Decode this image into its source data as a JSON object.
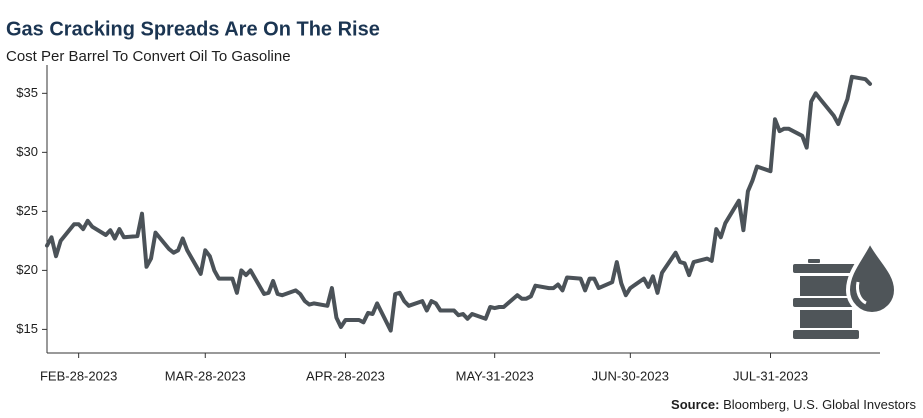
{
  "chart_data": {
    "type": "line",
    "title": "Gas Cracking Spreads Are On The Rise",
    "subtitle": "Cost Per Barrel To Convert Oil To Gasoline",
    "source_label": "Source:",
    "source": "Bloomberg, U.S. Global Investors",
    "color": "#4b5258",
    "x": [
      "2023-02-21",
      "2023-02-22",
      "2023-02-23",
      "2023-02-24",
      "2023-02-27",
      "2023-02-28",
      "2023-03-01",
      "2023-03-02",
      "2023-03-03",
      "2023-03-06",
      "2023-03-07",
      "2023-03-08",
      "2023-03-09",
      "2023-03-10",
      "2023-03-13",
      "2023-03-14",
      "2023-03-15",
      "2023-03-16",
      "2023-03-17",
      "2023-03-20",
      "2023-03-21",
      "2023-03-22",
      "2023-03-23",
      "2023-03-24",
      "2023-03-27",
      "2023-03-28",
      "2023-03-29",
      "2023-03-30",
      "2023-03-31",
      "2023-04-03",
      "2023-04-04",
      "2023-04-05",
      "2023-04-06",
      "2023-04-07",
      "2023-04-10",
      "2023-04-11",
      "2023-04-12",
      "2023-04-13",
      "2023-04-14",
      "2023-04-17",
      "2023-04-18",
      "2023-04-19",
      "2023-04-20",
      "2023-04-21",
      "2023-04-24",
      "2023-04-25",
      "2023-04-26",
      "2023-04-27",
      "2023-04-28",
      "2023-05-01",
      "2023-05-02",
      "2023-05-03",
      "2023-05-04",
      "2023-05-05",
      "2023-05-08",
      "2023-05-09",
      "2023-05-10",
      "2023-05-11",
      "2023-05-12",
      "2023-05-15",
      "2023-05-16",
      "2023-05-17",
      "2023-05-18",
      "2023-05-19",
      "2023-05-22",
      "2023-05-23",
      "2023-05-24",
      "2023-05-25",
      "2023-05-26",
      "2023-05-29",
      "2023-05-30",
      "2023-05-31",
      "2023-06-01",
      "2023-06-02",
      "2023-06-05",
      "2023-06-06",
      "2023-06-07",
      "2023-06-08",
      "2023-06-09",
      "2023-06-12",
      "2023-06-13",
      "2023-06-14",
      "2023-06-15",
      "2023-06-16",
      "2023-06-19",
      "2023-06-20",
      "2023-06-21",
      "2023-06-22",
      "2023-06-23",
      "2023-06-26",
      "2023-06-27",
      "2023-06-28",
      "2023-06-29",
      "2023-06-30",
      "2023-07-03",
      "2023-07-04",
      "2023-07-05",
      "2023-07-06",
      "2023-07-07",
      "2023-07-10",
      "2023-07-11",
      "2023-07-12",
      "2023-07-13",
      "2023-07-14",
      "2023-07-17",
      "2023-07-18",
      "2023-07-19",
      "2023-07-20",
      "2023-07-21",
      "2023-07-24",
      "2023-07-25",
      "2023-07-26",
      "2023-07-27",
      "2023-07-28",
      "2023-07-31",
      "2023-08-01",
      "2023-08-02",
      "2023-08-03",
      "2023-08-04",
      "2023-08-07",
      "2023-08-08",
      "2023-08-09",
      "2023-08-10",
      "2023-08-11",
      "2023-08-14",
      "2023-08-15",
      "2023-08-16",
      "2023-08-17",
      "2023-08-18",
      "2023-08-21",
      "2023-08-22"
    ],
    "values": [
      22.1,
      22.8,
      21.2,
      22.5,
      23.9,
      23.9,
      23.5,
      24.2,
      23.7,
      23.0,
      23.4,
      22.7,
      23.5,
      22.8,
      22.9,
      24.8,
      20.3,
      21.0,
      23.2,
      21.8,
      21.5,
      21.7,
      22.7,
      21.7,
      19.7,
      21.7,
      21.2,
      20.0,
      19.3,
      19.3,
      18.1,
      20.0,
      19.6,
      20.0,
      18.0,
      18.1,
      19.1,
      18.0,
      17.9,
      18.3,
      18.0,
      17.4,
      17.1,
      17.2,
      17.0,
      18.5,
      16.0,
      15.2,
      15.8,
      15.8,
      15.6,
      16.4,
      16.3,
      17.2,
      14.9,
      18.0,
      18.1,
      17.4,
      17.0,
      17.4,
      16.6,
      17.4,
      17.2,
      16.6,
      16.6,
      16.2,
      16.3,
      15.9,
      16.3,
      15.9,
      16.9,
      16.8,
      16.9,
      16.9,
      17.9,
      17.6,
      17.6,
      17.8,
      18.7,
      18.5,
      18.5,
      18.8,
      18.3,
      19.4,
      19.3,
      18.3,
      19.3,
      19.3,
      18.5,
      19.0,
      20.7,
      18.9,
      17.9,
      18.5,
      19.3,
      18.6,
      19.5,
      18.1,
      19.8,
      21.5,
      20.7,
      20.6,
      19.6,
      20.7,
      21.0,
      20.8,
      23.5,
      22.8,
      24.0,
      25.9,
      23.4,
      26.7,
      27.6,
      28.8,
      28.4,
      32.8,
      31.8,
      32.0,
      32.0,
      31.4,
      30.4,
      34.3,
      35.0,
      34.5,
      33.1,
      32.4,
      33.5,
      34.5,
      36.4,
      36.2,
      35.8
    ],
    "xlim": [
      "2023-02-21",
      "2023-08-22"
    ],
    "xticks": [
      {
        "value": "2023-02-28",
        "label": "FEB-28-2023"
      },
      {
        "value": "2023-03-28",
        "label": "MAR-28-2023"
      },
      {
        "value": "2023-04-28",
        "label": "APR-28-2023"
      },
      {
        "value": "2023-05-31",
        "label": "MAY-31-2023"
      },
      {
        "value": "2023-06-30",
        "label": "JUN-30-2023"
      },
      {
        "value": "2023-07-31",
        "label": "JUL-31-2023"
      }
    ],
    "ylim": [
      13,
      37.4
    ],
    "yticks": [
      {
        "value": 15,
        "label": "$15"
      },
      {
        "value": 20,
        "label": "$20"
      },
      {
        "value": 25,
        "label": "$25"
      },
      {
        "value": 30,
        "label": "$30"
      },
      {
        "value": 35,
        "label": "$35"
      }
    ],
    "grid": false
  }
}
